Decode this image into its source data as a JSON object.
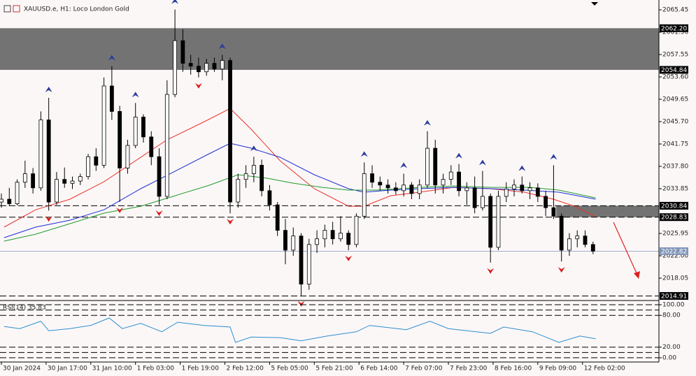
{
  "chart_data": {
    "type": "candlestick",
    "title": "XAUUSD.e, H1:  Loco London Gold",
    "up_color": "#ffffff",
    "down_color": "#000000",
    "x": [
      0,
      3,
      6,
      9,
      12,
      15,
      18,
      21,
      24,
      27,
      30,
      33,
      36,
      39,
      42,
      45,
      48,
      51,
      54,
      57,
      60,
      63,
      66,
      69,
      72,
      75,
      78,
      81,
      84,
      87,
      90,
      93,
      96,
      99,
      102,
      105,
      108,
      111,
      114,
      117,
      120,
      123,
      126,
      129,
      132,
      135,
      138,
      141,
      144,
      147,
      150,
      153,
      156,
      159,
      162,
      165,
      168,
      171,
      174,
      177,
      180,
      183,
      186,
      189,
      192,
      195,
      198,
      201,
      204,
      207,
      210,
      213,
      216,
      219,
      222,
      225
    ],
    "open": [
      2031.5,
      2032.0,
      2031.2,
      2035.0,
      2036.5,
      2034.0,
      2046.0,
      2031.5,
      2035.5,
      2034.8,
      2035.2,
      2036.0,
      2039.5,
      2038.0,
      2052.0,
      2047.5,
      2037.5,
      2041.5,
      2046.5,
      2043.0,
      2039.5,
      2032.5,
      2050.5,
      2060.0,
      2056.0,
      2055.5,
      2054.5,
      2056.0,
      2055.0,
      2056.5,
      2031.5,
      2035.5,
      2036.5,
      2038.0,
      2033.5,
      2031.0,
      2026.5,
      2023.0,
      2025.5,
      2017.0,
      2024.0,
      2025.0,
      2026.5,
      2025.0,
      2026.0,
      2024.0,
      2029.0,
      2036.5,
      2035.0,
      2034.5,
      2034.0,
      2033.5,
      2034.5,
      2033.0,
      2034.5,
      2041.0,
      2034.5,
      2035.5,
      2036.8,
      2033.5,
      2034.0,
      2030.5,
      2032.5,
      2023.5,
      2032.5,
      2033.8,
      2034.5,
      2033.5,
      2034.0,
      2032.5,
      2030.5,
      2029.0,
      2023.0,
      2025.0,
      2025.5,
      2024.0
    ],
    "high": [
      2033.0,
      2034.0,
      2035.5,
      2038.8,
      2037.5,
      2047.5,
      2049.9,
      2036.8,
      2037.6,
      2036.0,
      2036.5,
      2040.0,
      2041.0,
      2053.5,
      2055.5,
      2048.5,
      2042.5,
      2049.0,
      2047.0,
      2044.0,
      2041.0,
      2053.0,
      2065.5,
      2062.0,
      2057.5,
      2057.0,
      2056.8,
      2057.0,
      2057.5,
      2057.0,
      2036.5,
      2038.0,
      2039.5,
      2039.0,
      2034.5,
      2031.5,
      2028.5,
      2027.0,
      2026.0,
      2025.0,
      2026.5,
      2027.5,
      2028.0,
      2029.0,
      2026.5,
      2029.5,
      2038.5,
      2038.0,
      2036.0,
      2035.5,
      2035.0,
      2036.5,
      2035.0,
      2035.5,
      2044.0,
      2042.5,
      2036.5,
      2038.0,
      2038.2,
      2035.0,
      2036.0,
      2037.0,
      2033.0,
      2033.5,
      2035.0,
      2035.5,
      2036.0,
      2035.0,
      2034.8,
      2033.5,
      2038.0,
      2029.5,
      2026.0,
      2026.5,
      2026.5,
      2024.5
    ],
    "low": [
      2030.5,
      2030.8,
      2030.9,
      2034.0,
      2033.0,
      2033.5,
      2030.0,
      2031.0,
      2034.0,
      2033.8,
      2034.5,
      2035.5,
      2037.0,
      2037.5,
      2046.0,
      2031.5,
      2036.5,
      2041.0,
      2042.0,
      2038.0,
      2031.0,
      2032.0,
      2050.0,
      2054.5,
      2054.0,
      2053.5,
      2053.8,
      2054.5,
      2053.0,
      2029.5,
      2030.5,
      2034.0,
      2035.0,
      2032.5,
      2030.0,
      2025.5,
      2020.5,
      2022.0,
      2015.0,
      2016.0,
      2022.5,
      2023.5,
      2024.0,
      2024.5,
      2023.0,
      2023.5,
      2028.5,
      2034.0,
      2033.5,
      2033.0,
      2032.8,
      2032.5,
      2032.0,
      2032.0,
      2034.0,
      2033.0,
      2033.0,
      2034.5,
      2032.5,
      2031.0,
      2029.5,
      2030.0,
      2020.8,
      2023.0,
      2031.5,
      2032.5,
      2033.0,
      2032.0,
      2031.5,
      2029.0,
      2028.5,
      2021.0,
      2022.0,
      2023.5,
      2023.5,
      2022.3
    ],
    "close": [
      2032.0,
      2031.2,
      2035.0,
      2036.5,
      2034.0,
      2046.0,
      2031.5,
      2035.5,
      2034.8,
      2035.2,
      2036.0,
      2039.5,
      2038.0,
      2052.0,
      2047.5,
      2037.5,
      2041.5,
      2046.5,
      2043.0,
      2039.5,
      2032.5,
      2050.5,
      2060.0,
      2056.0,
      2055.5,
      2054.5,
      2056.0,
      2055.0,
      2056.5,
      2031.5,
      2035.5,
      2036.5,
      2038.0,
      2033.5,
      2031.0,
      2026.5,
      2023.0,
      2025.5,
      2017.0,
      2024.0,
      2025.0,
      2026.5,
      2025.0,
      2026.0,
      2024.0,
      2029.0,
      2036.5,
      2035.0,
      2034.5,
      2034.0,
      2033.5,
      2034.5,
      2033.0,
      2034.5,
      2041.0,
      2034.5,
      2035.5,
      2036.8,
      2033.5,
      2034.0,
      2030.5,
      2032.5,
      2023.5,
      2032.5,
      2033.8,
      2034.5,
      2033.5,
      2034.0,
      2032.5,
      2030.5,
      2029.0,
      2023.0,
      2025.0,
      2025.5,
      2024.0,
      2022.82
    ],
    "moving_averages": [
      {
        "color": "#e8322a",
        "x": [
          1,
          13,
          26,
          39,
          53,
          63,
          74,
          82,
          87,
          95,
          106,
          119,
          132,
          138,
          148,
          159,
          172,
          186,
          199,
          210,
          218,
          226
        ],
        "values": [
          2027.06,
          2030.12,
          2031.99,
          2035.08,
          2039.4,
          2042.49,
          2044.96,
          2046.81,
          2048.04,
          2044.34,
          2038.78,
          2033.85,
          2030.76,
          2030.76,
          2032.61,
          2033.23,
          2034.09,
          2033.85,
          2033.23,
          2031.99,
          2030.76,
          2028.91
        ]
      },
      {
        "color": "#1c2ed6",
        "x": [
          1,
          13,
          26,
          39,
          53,
          66,
          79,
          87,
          95,
          106,
          119,
          132,
          138,
          148,
          159,
          172,
          186,
          199,
          212,
          226
        ],
        "values": [
          2025.2,
          2027.06,
          2028.29,
          2030.12,
          2033.85,
          2036.93,
          2040.02,
          2041.87,
          2041.01,
          2039.4,
          2036.32,
          2033.85,
          2033.23,
          2033.6,
          2033.85,
          2034.09,
          2033.85,
          2033.6,
          2033.23,
          2032.0
        ]
      },
      {
        "color": "#1f9a2a",
        "x": [
          1,
          13,
          26,
          39,
          53,
          66,
          79,
          90,
          101,
          111,
          122,
          132,
          143,
          159,
          172,
          186,
          201,
          212,
          226
        ],
        "values": [
          2024.59,
          2025.82,
          2027.67,
          2029.53,
          2030.76,
          2032.61,
          2034.46,
          2036.32,
          2035.7,
          2034.83,
          2034.09,
          2033.6,
          2033.6,
          2034.09,
          2034.34,
          2034.09,
          2034.09,
          2033.6,
          2032.24
        ]
      }
    ],
    "zones": [
      {
        "from": 2054.84,
        "to": 2062.2,
        "color": "#6b6b6b"
      },
      {
        "from": 2028.83,
        "to": 2030.84,
        "x_from": 211,
        "color": "#6b6b6b"
      }
    ],
    "levels": [
      {
        "value": 2062.2,
        "label": "2062.20",
        "color": "#000000"
      },
      {
        "value": 2054.84,
        "color": "#000000"
      },
      {
        "value": 2030.84,
        "color": "#000000",
        "line": "dashed"
      },
      {
        "value": 2028.83,
        "color": "#000000",
        "line": "dashed"
      },
      {
        "value": 2022.82,
        "color": "#8196b8",
        "line": "solid"
      },
      {
        "value": 2014.91,
        "color": "#000000",
        "line": "dashed"
      }
    ],
    "xlim": [
      0,
      249
    ],
    "xticks": [
      {
        "value": 0,
        "label": "30 Jan 2024"
      },
      {
        "value": 17,
        "label": "30 Jan 17:00"
      },
      {
        "value": 34,
        "label": "31 Jan 10:00"
      },
      {
        "value": 51,
        "label": "1 Feb 03:00"
      },
      {
        "value": 68,
        "label": "1 Feb 19:00"
      },
      {
        "value": 85,
        "label": "2 Feb 12:00"
      },
      {
        "value": 102,
        "label": "5 Feb 05:00"
      },
      {
        "value": 119,
        "label": "5 Feb 21:00"
      },
      {
        "value": 136,
        "label": "6 Feb 14:00"
      },
      {
        "value": 153,
        "label": "7 Feb 07:00"
      },
      {
        "value": 170,
        "label": "7 Feb 23:00"
      },
      {
        "value": 187,
        "label": "8 Feb 16:00"
      },
      {
        "value": 204,
        "label": "9 Feb 09:00"
      },
      {
        "value": 221,
        "label": "12 Feb 02:00"
      }
    ],
    "ylim": [
      2014.35,
      2067.18
    ],
    "yticks": [
      2065.45,
      {
        "value": 2061.5,
        "label": "2061.50"
      },
      2057.55,
      {
        "value": 2053.6,
        "label": "2053.60"
      },
      2049.65,
      {
        "value": 2045.7,
        "label": "2045.70"
      },
      2041.75,
      {
        "value": 2037.8,
        "label": "2037.80"
      },
      2033.85,
      2025.95,
      {
        "value": 2022.0,
        "label": "2022.00"
      },
      2018.05
    ],
    "rsi": {
      "label": "RSI(14) 35.83",
      "color": "#2a8fd0",
      "x": [
        1,
        7,
        15,
        18,
        26,
        34,
        41,
        46,
        53,
        61,
        67,
        77,
        87,
        89,
        95,
        106,
        114,
        124,
        135,
        140,
        154,
        163,
        170,
        186,
        191,
        202,
        212,
        220,
        226
      ],
      "values": [
        59,
        55,
        69,
        51,
        55,
        61,
        75,
        55,
        65,
        49,
        67,
        61,
        58,
        29,
        39,
        38,
        32,
        41,
        49,
        61,
        53,
        69,
        55,
        46,
        58,
        49,
        29,
        41,
        35.83
      ],
      "ylim": [
        -8,
        105.3
      ],
      "yticks": [
        {
          "value": 100,
          "label": "100.00"
        },
        {
          "value": 80,
          "label": "80.00"
        },
        {
          "value": 20,
          "label": "20.00"
        },
        {
          "value": 0,
          "label": "0.00"
        }
      ],
      "levels": [
        100,
        90,
        80,
        20,
        10,
        0
      ]
    }
  }
}
